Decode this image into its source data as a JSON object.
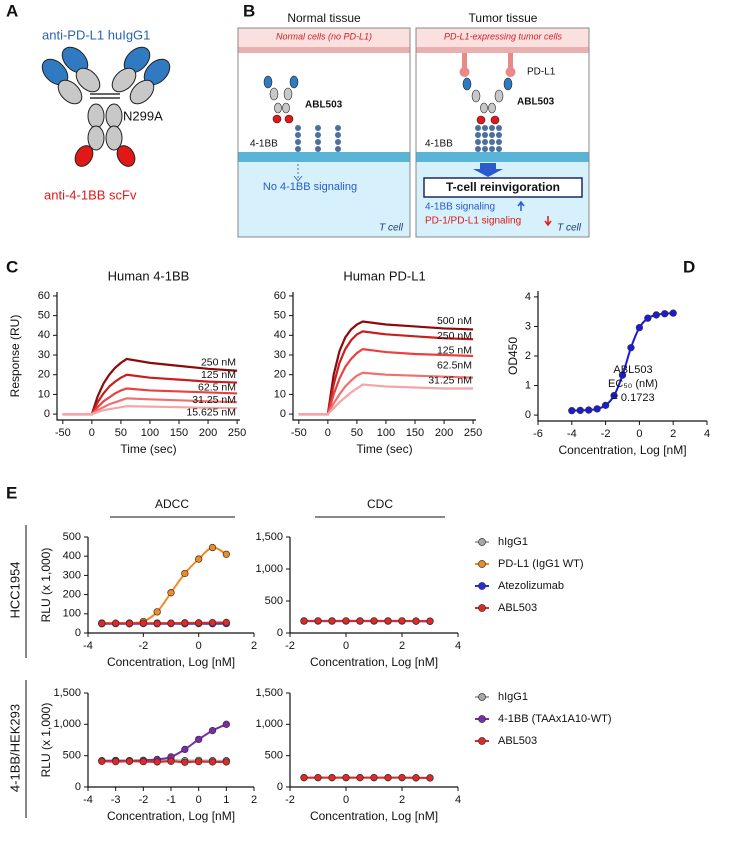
{
  "panel_labels": [
    "A",
    "B",
    "C",
    "D",
    "E"
  ],
  "panel_a": {
    "heavy_label": "anti-PD-L1 huIgG1",
    "mutation": "N299A",
    "scfv_label": "anti-4-1BB scFv"
  },
  "panel_b": {
    "normal": {
      "title": "Normal tissue",
      "cell_label": "Normal cells (no PD-L1)",
      "antibody": "ABL503",
      "receptor": "4-1BB",
      "outcome": "No 4-1BB signaling",
      "t_cell": "T cell"
    },
    "tumor": {
      "title": "Tumor tissue",
      "cell_label": "PD-L1-expressing tumor cells",
      "ligand": "PD-L1",
      "antibody": "ABL503",
      "receptor": "4-1BB",
      "outcome": "T-cell reinvigoration",
      "signal_up": "4-1BB signaling",
      "signal_down": "PD-1/PD-L1 signaling",
      "t_cell": "T cell"
    }
  },
  "panel_e": {
    "column_headers": [
      "ADCC",
      "CDC"
    ],
    "row_labels": [
      "HCC1954",
      "4-1BB/HEK293"
    ]
  },
  "chart_data": [
    {
      "type": "line",
      "title": "Human 4-1BB",
      "x_label": "Time (sec)",
      "y_label": "Response (RU)",
      "direct_labels": true,
      "x": [
        -50,
        0,
        10,
        20,
        30,
        40,
        50,
        60,
        100,
        150,
        200,
        250
      ],
      "series": [
        {
          "name": "250 nM",
          "color": "#8b0a0a",
          "values": [
            0,
            0,
            9,
            15.5,
            20,
            23.5,
            26,
            28,
            26,
            24.5,
            23,
            22
          ]
        },
        {
          "name": "125 nM",
          "color": "#c81e1e",
          "values": [
            0,
            0,
            6,
            10.5,
            14,
            16.5,
            18.5,
            20,
            18.5,
            17.5,
            16.5,
            16
          ]
        },
        {
          "name": "62.5 nM",
          "color": "#e8413f",
          "values": [
            0,
            0,
            3.5,
            6.5,
            8.5,
            10.5,
            12,
            13,
            12,
            11.5,
            11,
            10.5
          ]
        },
        {
          "name": "31.25 nM",
          "color": "#f07070",
          "values": [
            0,
            0,
            2,
            3.5,
            5,
            6,
            7,
            8,
            7.5,
            7,
            6.5,
            6
          ]
        },
        {
          "name": "15.625 nM",
          "color": "#f5a5a5",
          "values": [
            0,
            0,
            1,
            2,
            2.5,
            3,
            3.5,
            4,
            3.8,
            3.5,
            3.2,
            3
          ]
        }
      ],
      "xlim": [
        -60,
        255
      ],
      "xticks": [
        -50,
        0,
        50,
        100,
        150,
        200,
        250
      ],
      "ylim": [
        -3,
        62
      ],
      "yticks": [
        0,
        10,
        20,
        30,
        40,
        50,
        60
      ]
    },
    {
      "type": "line",
      "title": "Human PD-L1",
      "x_label": "Time (sec)",
      "direct_labels": true,
      "x": [
        -50,
        0,
        10,
        20,
        30,
        40,
        50,
        60,
        100,
        150,
        200,
        250
      ],
      "series": [
        {
          "name": "500 nM",
          "color": "#8b0a0a",
          "values": [
            0,
            0,
            20,
            32,
            39,
            43,
            45.5,
            47,
            45.5,
            44.5,
            43.5,
            43
          ]
        },
        {
          "name": "250 nM",
          "color": "#c81e1e",
          "values": [
            0,
            0,
            15,
            26,
            33,
            37.5,
            40.5,
            42,
            40.5,
            39.5,
            38.5,
            38
          ]
        },
        {
          "name": "125 nM",
          "color": "#e8413f",
          "values": [
            0,
            0,
            10,
            18,
            24,
            28,
            31,
            33,
            31.5,
            30.5,
            30,
            29.5
          ]
        },
        {
          "name": "62.5nM",
          "color": "#f07070",
          "values": [
            0,
            0,
            5.5,
            10,
            14,
            17,
            19.5,
            21,
            20,
            19.5,
            19,
            18.5
          ]
        },
        {
          "name": "31.25 nM",
          "color": "#f5a5a5",
          "values": [
            0,
            0,
            3,
            6,
            8.5,
            11,
            13,
            15,
            14,
            13.5,
            13,
            13
          ]
        }
      ],
      "xlim": [
        -60,
        255
      ],
      "xticks": [
        -50,
        0,
        50,
        100,
        150,
        200,
        250
      ],
      "ylim": [
        -3,
        62
      ],
      "yticks": [
        0,
        10,
        20,
        30,
        40,
        50,
        60
      ]
    },
    {
      "type": "line",
      "x_label": "Concentration, Log [nM]",
      "y_label": "OD450",
      "markers": true,
      "curve": "smooth",
      "annotation": [
        "EC₅₀ (nM)",
        "= 0.1723"
      ],
      "x": [
        -4,
        -3.5,
        -3,
        -2.5,
        -2,
        -1.5,
        -1,
        -0.5,
        0,
        0.5,
        1,
        1.5,
        2
      ],
      "series": [
        {
          "name": "ABL503",
          "color": "#1a1adb",
          "values": [
            0.15,
            0.16,
            0.17,
            0.21,
            0.33,
            0.66,
            1.35,
            2.28,
            2.96,
            3.28,
            3.39,
            3.43,
            3.45
          ]
        }
      ],
      "xlim": [
        -6,
        4
      ],
      "xticks": [
        -6,
        -4,
        -2,
        0,
        2,
        4
      ],
      "ylim": [
        -0.2,
        4.2
      ],
      "yticks": [
        0,
        1,
        2,
        3,
        4
      ]
    },
    {
      "type": "line",
      "x_label": "Concentration, Log [nM]",
      "y_label": "RLU (x 1,000)",
      "markers": true,
      "curve": "smooth",
      "legend": "right",
      "x": [
        -3.5,
        -3,
        -2.5,
        -2,
        -1.5,
        -1,
        -0.5,
        0,
        0.5,
        1
      ],
      "series": [
        {
          "name": "hIgG1",
          "color": "#a8a8a8",
          "values": [
            52,
            50,
            51,
            50,
            52,
            51,
            53,
            52,
            51,
            52
          ]
        },
        {
          "name": "PD-L1 (IgG1 WT)",
          "color": "#f28a24",
          "values": [
            50,
            50,
            52,
            60,
            110,
            210,
            310,
            385,
            445,
            410
          ]
        },
        {
          "name": "Atezolizumab",
          "color": "#2a2ae0",
          "values": [
            48,
            49,
            48,
            49,
            48,
            49,
            48,
            49,
            48,
            49
          ]
        },
        {
          "name": "ABL503",
          "color": "#e02828",
          "values": [
            50,
            51,
            50,
            51,
            50,
            51,
            52,
            53,
            54,
            55
          ]
        }
      ],
      "xlim": [
        -4,
        2
      ],
      "xticks": [
        -4,
        -2,
        0,
        2
      ],
      "ylim": [
        0,
        500
      ],
      "yticks": [
        0,
        100,
        200,
        300,
        400,
        500
      ]
    },
    {
      "type": "line",
      "x_label": "Concentration, Log [nM]",
      "markers": true,
      "curve": "smooth",
      "x": [
        -1.5,
        -1,
        -0.5,
        0,
        0.5,
        1,
        1.5,
        2,
        2.5,
        3
      ],
      "series": [
        {
          "color": "#a8a8a8",
          "values": [
            190,
            188,
            190,
            188,
            190,
            188,
            190,
            188,
            186,
            185
          ]
        },
        {
          "color": "#2a2ae0",
          "values": [
            185,
            186,
            185,
            186,
            185,
            186,
            185,
            186,
            184,
            183
          ]
        },
        {
          "color": "#e02828",
          "values": [
            188,
            190,
            188,
            190,
            188,
            190,
            188,
            190,
            187,
            184
          ]
        }
      ],
      "xlim": [
        -2,
        4
      ],
      "xticks": [
        -2,
        0,
        2,
        4
      ],
      "ylim": [
        0,
        1500
      ],
      "yticks": [
        0,
        500,
        {
          "value": 1000,
          "label": "1,000"
        },
        {
          "value": 1500,
          "label": "1,500"
        }
      ]
    },
    {
      "type": "line",
      "x_label": "Concentration, Log [nM]",
      "y_label": "RLU (x 1,000)",
      "markers": true,
      "curve": "smooth",
      "legend": "right",
      "x": [
        -3.5,
        -3,
        -2.5,
        -2,
        -1.5,
        -1,
        -0.5,
        0,
        0.5,
        1
      ],
      "series": [
        {
          "name": "hIgG1",
          "color": "#a8a8a8",
          "values": [
            420,
            425,
            420,
            425,
            420,
            430,
            420,
            425,
            420,
            420
          ]
        },
        {
          "name": "4-1BB (TAAx1A10-WT)",
          "color": "#7a2ca8",
          "values": [
            415,
            418,
            420,
            425,
            440,
            480,
            600,
            760,
            900,
            1000
          ]
        },
        {
          "name": "ABL503",
          "color": "#e02828",
          "values": [
            410,
            405,
            410,
            405,
            400,
            410,
            395,
            405,
            400,
            400
          ]
        }
      ],
      "xlim": [
        -4,
        2
      ],
      "xticks": [
        -4,
        -3,
        -2,
        -1,
        0,
        1,
        2
      ],
      "ylim": [
        0,
        1500
      ],
      "yticks": [
        0,
        500,
        {
          "value": 1000,
          "label": "1,000"
        },
        {
          "value": 1500,
          "label": "1,500"
        }
      ]
    },
    {
      "type": "line",
      "x_label": "Concentration, Log [nM]",
      "markers": true,
      "curve": "smooth",
      "x": [
        -1.5,
        -1,
        -0.5,
        0,
        0.5,
        1,
        1.5,
        2,
        2.5,
        3
      ],
      "series": [
        {
          "color": "#a8a8a8",
          "values": [
            150,
            148,
            150,
            148,
            150,
            148,
            150,
            148,
            146,
            145
          ]
        },
        {
          "color": "#e02828",
          "values": [
            148,
            150,
            148,
            150,
            148,
            150,
            148,
            150,
            147,
            145
          ]
        }
      ],
      "xlim": [
        -2,
        4
      ],
      "xticks": [
        -2,
        0,
        2,
        4
      ],
      "ylim": [
        0,
        1500
      ],
      "yticks": [
        0,
        500,
        {
          "value": 1000,
          "label": "1,000"
        },
        {
          "value": 1500,
          "label": "1,500"
        }
      ]
    }
  ]
}
